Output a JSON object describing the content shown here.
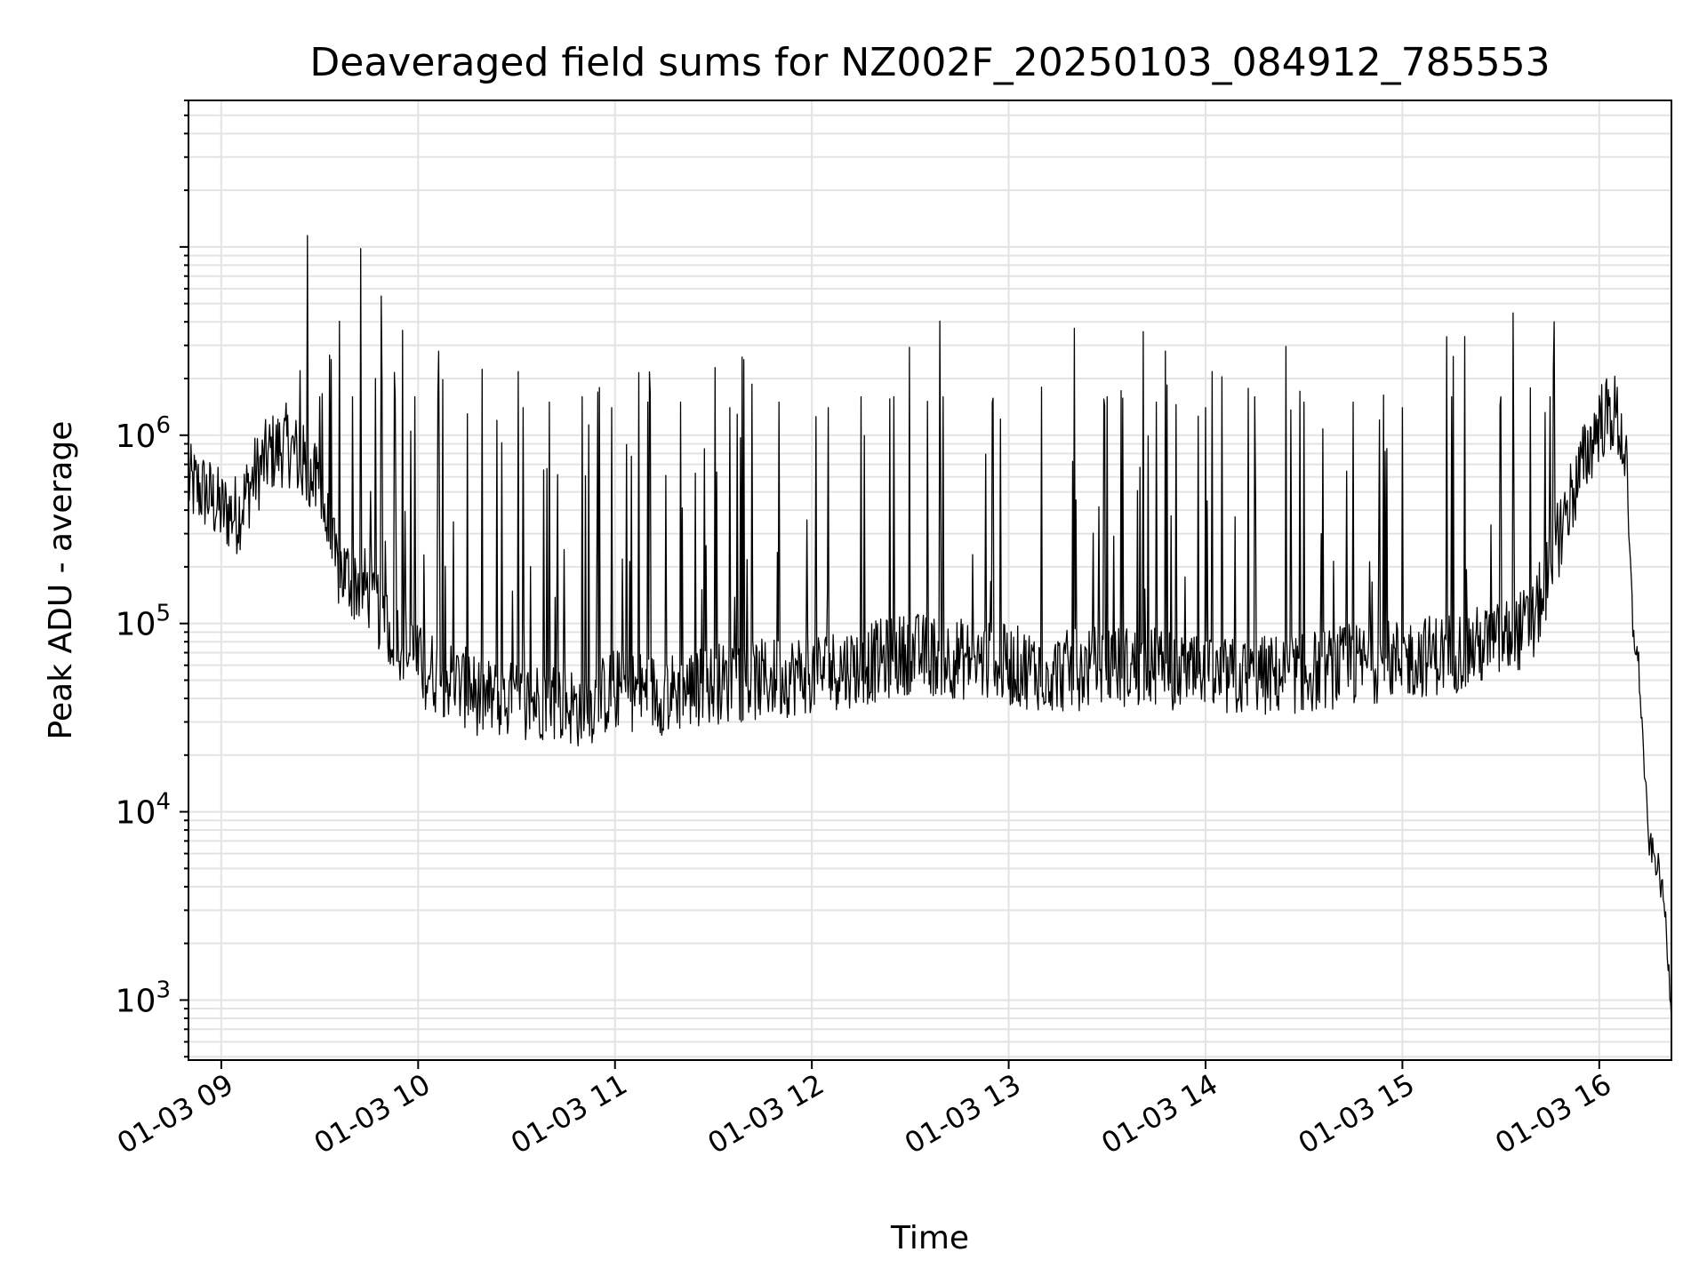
{
  "chart_data": {
    "type": "line",
    "title": "Deaveraged field sums for NZ002F_20250103_084912_785553",
    "xlabel": "Time",
    "ylabel": "Peak ADU - average",
    "yscale": "log",
    "ylim": [
      480,
      60000000
    ],
    "xlim": [
      "2025-01-03 08:50",
      "2025-01-03 16:22"
    ],
    "grid": true,
    "x_tick_labels": [
      "01-03 09",
      "01-03 10",
      "01-03 11",
      "01-03 12",
      "01-03 13",
      "01-03 14",
      "01-03 15",
      "01-03 16"
    ],
    "x_ticks": [
      "2025-01-03 09:00",
      "2025-01-03 10:00",
      "2025-01-03 11:00",
      "2025-01-03 12:00",
      "2025-01-03 13:00",
      "2025-01-03 14:00",
      "2025-01-03 15:00",
      "2025-01-03 16:00"
    ],
    "y_tick_labels": [
      "10^3",
      "10^4",
      "10^5",
      "10^6"
    ],
    "y_ticks": [
      1000,
      10000,
      100000,
      1000000
    ],
    "line_color": "#000000",
    "series": [
      {
        "x": [
          "2025-01-03 08:50",
          "2025-01-03 08:55",
          "2025-01-03 09:00",
          "2025-01-03 09:05",
          "2025-01-03 09:10",
          "2025-01-03 09:15",
          "2025-01-03 09:20",
          "2025-01-03 09:25",
          "2025-01-03 09:30",
          "2025-01-03 09:35",
          "2025-01-03 09:40",
          "2025-01-03 09:45",
          "2025-01-03 09:50",
          "2025-01-03 09:55",
          "2025-01-03 10:00",
          "2025-01-03 10:10",
          "2025-01-03 10:20",
          "2025-01-03 10:30",
          "2025-01-03 10:40",
          "2025-01-03 10:50",
          "2025-01-03 11:00",
          "2025-01-03 11:15",
          "2025-01-03 11:30",
          "2025-01-03 11:45",
          "2025-01-03 12:00",
          "2025-01-03 12:15",
          "2025-01-03 12:30",
          "2025-01-03 12:45",
          "2025-01-03 13:00",
          "2025-01-03 13:15",
          "2025-01-03 13:30",
          "2025-01-03 13:45",
          "2025-01-03 14:00",
          "2025-01-03 14:15",
          "2025-01-03 14:30",
          "2025-01-03 14:45",
          "2025-01-03 15:00",
          "2025-01-03 15:15",
          "2025-01-03 15:30",
          "2025-01-03 15:40",
          "2025-01-03 15:50",
          "2025-01-03 16:00",
          "2025-01-03 16:05",
          "2025-01-03 16:08",
          "2025-01-03 16:10",
          "2025-01-03 16:12",
          "2025-01-03 16:15",
          "2025-01-03 16:18",
          "2025-01-03 16:20",
          "2025-01-03 16:22"
        ],
        "y": [
          550000,
          500000,
          400000,
          380000,
          600000,
          800000,
          900000,
          700000,
          500000,
          200000,
          170000,
          150000,
          100000,
          80000,
          60000,
          50000,
          40000,
          38000,
          40000,
          35000,
          45000,
          42000,
          48000,
          50000,
          55000,
          60000,
          70000,
          65000,
          60000,
          55000,
          60000,
          58000,
          50000,
          52000,
          55000,
          60000,
          65000,
          70000,
          80000,
          100000,
          400000,
          1200000,
          1300000,
          800000,
          100000,
          60000,
          7000,
          5000,
          3000,
          900
        ]
      }
    ],
    "spikes": [
      {
        "x": "2025-01-03 09:24",
        "y": 2200000
      },
      {
        "x": "2025-01-03 09:30",
        "y": 1600000
      },
      {
        "x": "2025-01-03 09:40",
        "y": 1600000
      },
      {
        "x": "2025-01-03 09:47",
        "y": 2000000
      },
      {
        "x": "2025-01-03 09:49",
        "y": 1900000
      },
      {
        "x": "2025-01-03 09:53",
        "y": 1600000
      },
      {
        "x": "2025-01-03 09:59",
        "y": 1600000
      },
      {
        "x": "2025-01-03 10:06",
        "y": 1600000
      },
      {
        "x": "2025-01-03 10:15",
        "y": 1300000
      },
      {
        "x": "2025-01-03 10:24",
        "y": 1200000
      },
      {
        "x": "2025-01-03 10:32",
        "y": 1400000
      },
      {
        "x": "2025-01-03 10:40",
        "y": 1500000
      },
      {
        "x": "2025-01-03 10:50",
        "y": 1600000
      },
      {
        "x": "2025-01-03 10:59",
        "y": 1400000
      },
      {
        "x": "2025-01-03 11:10",
        "y": 1500000
      },
      {
        "x": "2025-01-03 11:20",
        "y": 1500000
      },
      {
        "x": "2025-01-03 11:35",
        "y": 1400000
      },
      {
        "x": "2025-01-03 11:50",
        "y": 1500000
      },
      {
        "x": "2025-01-03 12:05",
        "y": 1400000
      },
      {
        "x": "2025-01-03 12:15",
        "y": 1600000
      },
      {
        "x": "2025-01-03 12:25",
        "y": 1600000
      },
      {
        "x": "2025-01-03 12:40",
        "y": 1600000
      },
      {
        "x": "2025-01-03 12:55",
        "y": 1500000
      },
      {
        "x": "2025-01-03 13:10",
        "y": 1800000
      },
      {
        "x": "2025-01-03 13:20",
        "y": 3700000
      },
      {
        "x": "2025-01-03 13:30",
        "y": 1600000
      },
      {
        "x": "2025-01-03 13:45",
        "y": 1500000
      },
      {
        "x": "2025-01-03 14:00",
        "y": 1400000
      },
      {
        "x": "2025-01-03 14:15",
        "y": 1600000
      },
      {
        "x": "2025-01-03 14:30",
        "y": 1500000
      },
      {
        "x": "2025-01-03 14:45",
        "y": 1500000
      },
      {
        "x": "2025-01-03 15:00",
        "y": 1400000
      },
      {
        "x": "2025-01-03 15:15",
        "y": 1600000
      },
      {
        "x": "2025-01-03 15:30",
        "y": 1600000
      },
      {
        "x": "2025-01-03 15:45",
        "y": 1600000
      }
    ]
  }
}
